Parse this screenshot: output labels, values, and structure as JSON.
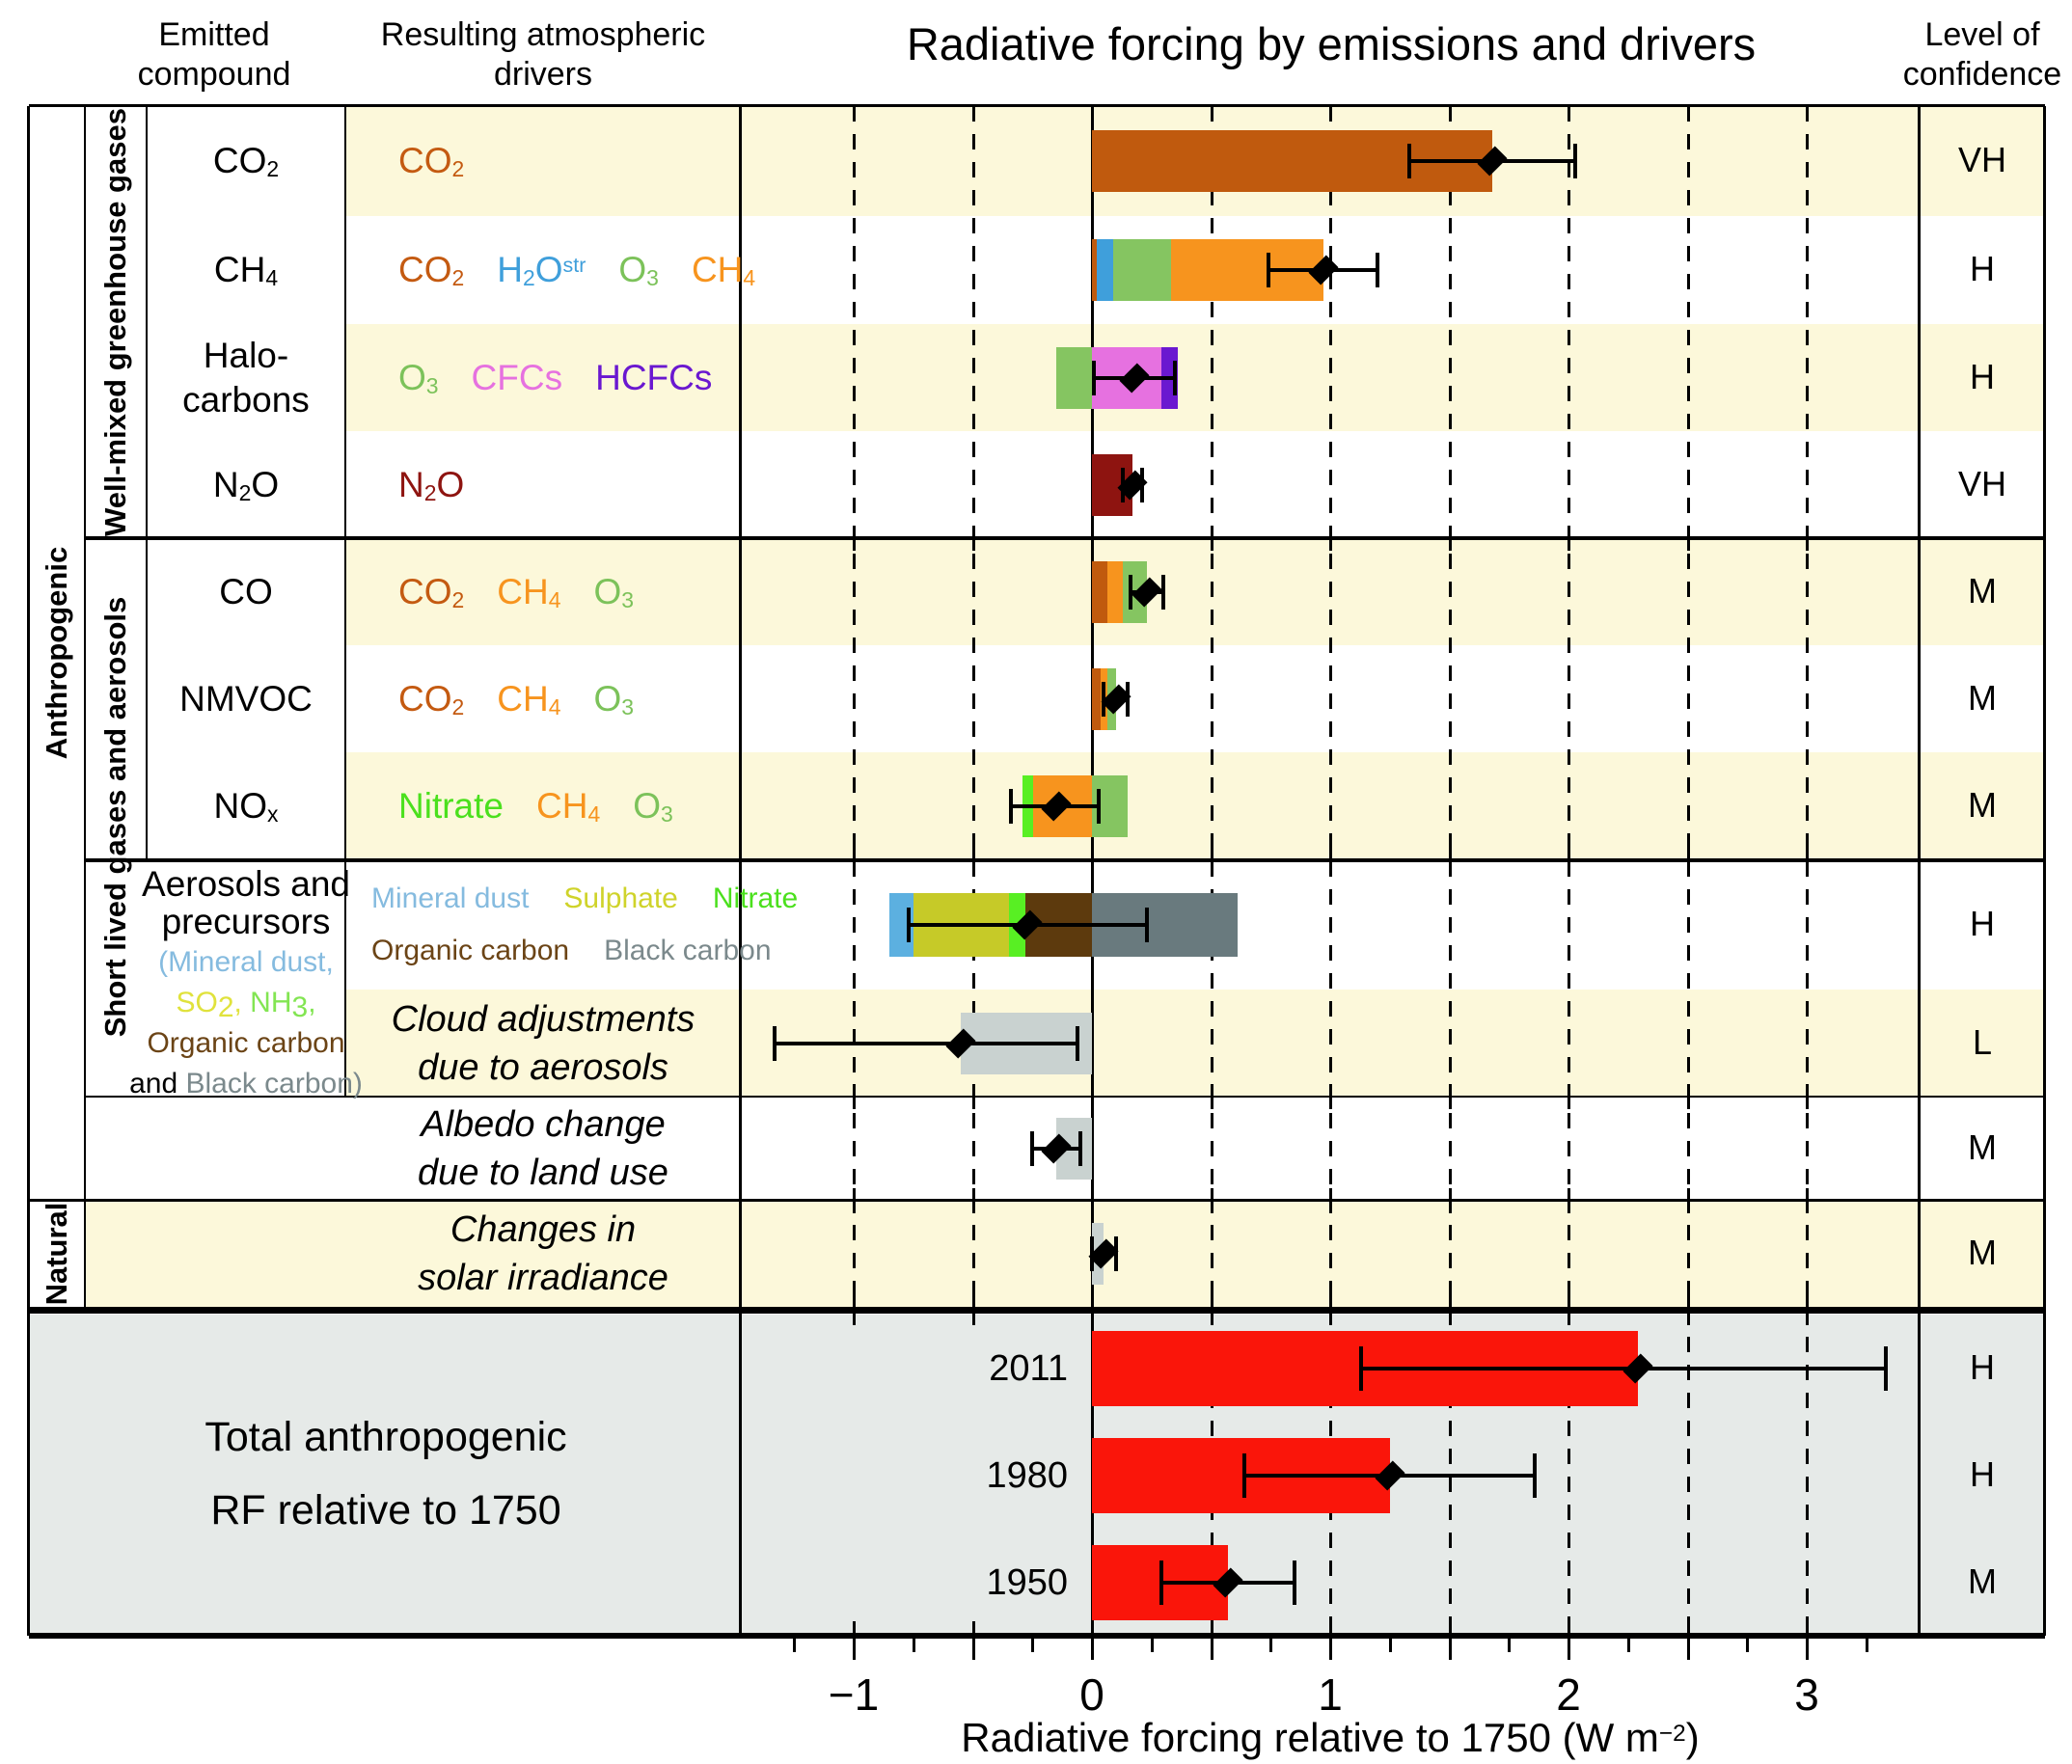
{
  "header": {
    "title": "Radiative forcing by emissions and drivers",
    "emitted_compound": [
      "Emitted",
      "compound"
    ],
    "drivers": [
      "Resulting atmospheric",
      "drivers"
    ],
    "confidence": [
      "Level of",
      "confidence"
    ]
  },
  "groups": {
    "anthropogenic": "Anthropogenic",
    "natural": "Natural",
    "well_mixed": "Well-mixed greenhouse gases",
    "short_lived": "Short lived gases and aerosols"
  },
  "palette": {
    "band_yellow": "#fcf8da",
    "total_bg": "#e6eae8",
    "value_red": "#fb0f00",
    "value_blue": "#2c52d9",
    "bar": {
      "co2": "#c05a0e",
      "ch4": "#f7941e",
      "h2o": "#3f9fdb",
      "o3": "#85c561",
      "cfc": "#e671e0",
      "hcfc": "#6a18d0",
      "n2o": "#8e1410",
      "nitrate": "#58ef23",
      "mdust": "#5cb0e0",
      "sulph": "#c6ca28",
      "oc": "#5d3a0d",
      "bc": "#697a7e",
      "lgrey": "#c9d2d0",
      "red": "#fa150a"
    },
    "text": {
      "black": "#000000",
      "co2": "#c45a11",
      "h2o": "#3f9fdb",
      "o3": "#7cc25a",
      "ch4": "#f7941e",
      "cfc": "#e671e0",
      "hcfc": "#6a18d0",
      "n2o": "#8e1410",
      "nitrate": "#4be01d",
      "mdust": "#85bbdf",
      "sulph": "#cfd32a",
      "oc": "#6b4416",
      "bc": "#7b898c",
      "so2": "#e0e23c",
      "nh3": "#83e553"
    }
  },
  "rows": [
    {
      "id": "co2",
      "band": true,
      "compound": [
        [
          {
            "t": "CO"
          },
          {
            "t": "2",
            "p": "sub"
          }
        ]
      ],
      "drivers": [
        [
          {
            "c": "co2",
            "tk": [
              {
                "t": "CO"
              },
              {
                "t": "2",
                "p": "sub"
              }
            ]
          }
        ]
      ],
      "value": "1.68 [1.33 to 2.03]",
      "vc": "red",
      "conf": "VH",
      "segments": [
        {
          "c": "co2",
          "v0": 0,
          "v1": 1.68
        }
      ],
      "best": 1.68,
      "lo": 1.33,
      "hi": 2.03
    },
    {
      "id": "ch4",
      "band": false,
      "compound": [
        [
          {
            "t": "CH"
          },
          {
            "t": "4",
            "p": "sub"
          }
        ]
      ],
      "drivers": [
        [
          {
            "c": "co2",
            "tk": [
              {
                "t": "CO"
              },
              {
                "t": "2",
                "p": "sub"
              }
            ]
          },
          {
            "c": "h2o",
            "tk": [
              {
                "t": "H"
              },
              {
                "t": "2",
                "p": "sub"
              },
              {
                "t": "O"
              },
              {
                "t": "str",
                "p": "sup"
              }
            ]
          },
          {
            "c": "o3",
            "tk": [
              {
                "t": "O"
              },
              {
                "t": "3",
                "p": "sub"
              }
            ]
          },
          {
            "c": "ch4",
            "tk": [
              {
                "t": "CH"
              },
              {
                "t": "4",
                "p": "sub"
              }
            ]
          }
        ]
      ],
      "value": "0.97 [0.74 to 1.20]",
      "vc": "red",
      "conf": "H",
      "segments": [
        {
          "c": "co2",
          "v0": 0,
          "v1": 0.02
        },
        {
          "c": "h2o",
          "v0": 0.02,
          "v1": 0.09
        },
        {
          "c": "o3",
          "v0": 0.09,
          "v1": 0.33
        },
        {
          "c": "ch4",
          "v0": 0.33,
          "v1": 0.97
        }
      ],
      "best": 0.97,
      "lo": 0.74,
      "hi": 1.2
    },
    {
      "id": "halocarbons",
      "band": true,
      "compound": [
        [
          {
            "t": "Halo-"
          }
        ],
        [
          {
            "t": "carbons"
          }
        ]
      ],
      "drivers": [
        [
          {
            "c": "o3",
            "tk": [
              {
                "t": "O"
              },
              {
                "t": "3",
                "p": "sub"
              }
            ]
          },
          {
            "c": "cfc",
            "tk": [
              {
                "t": "CFCs"
              }
            ]
          },
          {
            "c": "hcfc",
            "tk": [
              {
                "t": "HCFCs"
              }
            ]
          }
        ]
      ],
      "value": "0.18 [0.01 to 0.35]",
      "vc": "red",
      "conf": "H",
      "segments": [
        {
          "c": "o3",
          "v0": -0.15,
          "v1": 0
        },
        {
          "c": "cfc",
          "v0": 0,
          "v1": 0.29
        },
        {
          "c": "hcfc",
          "v0": 0.29,
          "v1": 0.36
        }
      ],
      "best": 0.18,
      "lo": 0.01,
      "hi": 0.35
    },
    {
      "id": "n2o",
      "band": false,
      "compound": [
        [
          {
            "t": "N"
          },
          {
            "t": "2",
            "p": "sub"
          },
          {
            "t": "O"
          }
        ]
      ],
      "drivers": [
        [
          {
            "c": "n2o",
            "tk": [
              {
                "t": "N"
              },
              {
                "t": "2",
                "p": "sub"
              },
              {
                "t": "O"
              }
            ]
          }
        ]
      ],
      "value": "0.17 [0.13 to 0.21]",
      "vc": "red",
      "conf": "VH",
      "segments": [
        {
          "c": "n2o",
          "v0": 0,
          "v1": 0.17
        }
      ],
      "best": 0.17,
      "lo": 0.13,
      "hi": 0.21
    },
    {
      "id": "co",
      "band": true,
      "compound": [
        [
          {
            "t": "CO"
          }
        ]
      ],
      "drivers": [
        [
          {
            "c": "co2",
            "tk": [
              {
                "t": "CO"
              },
              {
                "t": "2",
                "p": "sub"
              }
            ]
          },
          {
            "c": "ch4",
            "tk": [
              {
                "t": "CH"
              },
              {
                "t": "4",
                "p": "sub"
              }
            ]
          },
          {
            "c": "o3",
            "tk": [
              {
                "t": "O"
              },
              {
                "t": "3",
                "p": "sub"
              }
            ]
          }
        ]
      ],
      "value": "0.23 [0.16 to 0.30]",
      "vc": "red",
      "conf": "M",
      "segments": [
        {
          "c": "co2",
          "v0": 0,
          "v1": 0.065
        },
        {
          "c": "ch4",
          "v0": 0.065,
          "v1": 0.13
        },
        {
          "c": "o3",
          "v0": 0.13,
          "v1": 0.23
        }
      ],
      "best": 0.23,
      "lo": 0.16,
      "hi": 0.3
    },
    {
      "id": "nmvoc",
      "band": false,
      "compound": [
        [
          {
            "t": "NMVOC"
          }
        ]
      ],
      "drivers": [
        [
          {
            "c": "co2",
            "tk": [
              {
                "t": "CO"
              },
              {
                "t": "2",
                "p": "sub"
              }
            ]
          },
          {
            "c": "ch4",
            "tk": [
              {
                "t": "CH"
              },
              {
                "t": "4",
                "p": "sub"
              }
            ]
          },
          {
            "c": "o3",
            "tk": [
              {
                "t": "O"
              },
              {
                "t": "3",
                "p": "sub"
              }
            ]
          }
        ]
      ],
      "value": "0.10 [0.05 to 0.15]",
      "vc": "red",
      "conf": "M",
      "segments": [
        {
          "c": "co2",
          "v0": 0,
          "v1": 0.035
        },
        {
          "c": "ch4",
          "v0": 0.035,
          "v1": 0.065
        },
        {
          "c": "o3",
          "v0": 0.065,
          "v1": 0.1
        }
      ],
      "best": 0.1,
      "lo": 0.05,
      "hi": 0.15
    },
    {
      "id": "nox",
      "band": true,
      "compound": [
        [
          {
            "t": "NO"
          },
          {
            "t": "x",
            "p": "sub"
          }
        ]
      ],
      "drivers": [
        [
          {
            "c": "nitrate",
            "tk": [
              {
                "t": "Nitrate"
              }
            ]
          },
          {
            "c": "ch4",
            "tk": [
              {
                "t": "CH"
              },
              {
                "t": "4",
                "p": "sub"
              }
            ]
          },
          {
            "c": "o3",
            "tk": [
              {
                "t": "O"
              },
              {
                "t": "3",
                "p": "sub"
              }
            ]
          }
        ]
      ],
      "value": "-0.15 [-0.34 to 0.03]",
      "vc": "blue",
      "conf": "M",
      "segments": [
        {
          "c": "nitrate",
          "v0": -0.29,
          "v1": -0.245
        },
        {
          "c": "ch4",
          "v0": -0.245,
          "v1": 0
        },
        {
          "c": "o3",
          "v0": 0,
          "v1": 0.15
        }
      ],
      "best": -0.15,
      "lo": -0.34,
      "hi": 0.03
    },
    {
      "id": "aerosols",
      "band": false,
      "compound": [
        [
          {
            "t": "Aerosols and"
          }
        ],
        [
          {
            "t": "precursors"
          }
        ],
        [
          {
            "t": "(Mineral dust,",
            "c": "mdust",
            "small": true
          }
        ],
        [
          {
            "t": "SO",
            "c": "so2",
            "small": true
          },
          {
            "t": "2",
            "p": "sub",
            "c": "so2",
            "small": true
          },
          {
            "t": ", ",
            "c": "so2",
            "small": true
          },
          {
            "t": "NH",
            "c": "nh3",
            "small": true
          },
          {
            "t": "3",
            "p": "sub",
            "c": "nh3",
            "small": true
          },
          {
            "t": ",",
            "c": "nh3",
            "small": true
          }
        ],
        [
          {
            "t": "Organic carbon",
            "c": "oc",
            "small": true
          }
        ],
        [
          {
            "t": "and ",
            "small": true
          },
          {
            "t": "Black carbon)",
            "c": "bc",
            "small": true
          }
        ]
      ],
      "drivers": [
        [
          {
            "c": "mdust",
            "tk": [
              {
                "t": "Mineral dust"
              }
            ],
            "small": true
          },
          {
            "c": "sulph",
            "tk": [
              {
                "t": "Sulphate"
              }
            ],
            "small": true
          },
          {
            "c": "nitrate",
            "tk": [
              {
                "t": "Nitrate"
              }
            ],
            "small": true
          }
        ],
        [
          {
            "c": "oc",
            "tk": [
              {
                "t": "Organic carbon"
              }
            ],
            "small": true
          },
          {
            "c": "bc",
            "tk": [
              {
                "t": "Black carbon"
              }
            ],
            "small": true
          }
        ]
      ],
      "value": "-0.27 [-0.77 to 0.23]",
      "vc": "blue",
      "conf": "H",
      "segments": [
        {
          "c": "mdust",
          "v0": -0.85,
          "v1": -0.75
        },
        {
          "c": "sulph",
          "v0": -0.75,
          "v1": -0.35
        },
        {
          "c": "nitrate",
          "v0": -0.35,
          "v1": -0.28
        },
        {
          "c": "oc",
          "v0": -0.28,
          "v1": 0
        },
        {
          "c": "bc",
          "v0": 0,
          "v1": 0.61
        }
      ],
      "best": -0.27,
      "lo": -0.77,
      "hi": 0.23
    },
    {
      "id": "cloud",
      "band": true,
      "drivers_italic": [
        "Cloud adjustments",
        "due to aerosols"
      ],
      "value": "-0.55 [-1.33 to -0.06]",
      "vc": "blue",
      "conf": "L",
      "segments": [
        {
          "c": "lgrey",
          "v0": -0.55,
          "v1": 0
        }
      ],
      "best": -0.55,
      "lo": -1.33,
      "hi": -0.06
    },
    {
      "id": "albedo",
      "band": false,
      "drivers_italic": [
        "Albedo change",
        "due to land use"
      ],
      "value": "-0.15 [-0.25 to -0.05]",
      "vc": "blue",
      "conf": "M",
      "segments": [
        {
          "c": "lgrey",
          "v0": -0.15,
          "v1": 0
        }
      ],
      "best": -0.15,
      "lo": -0.25,
      "hi": -0.05
    },
    {
      "id": "solar",
      "band": true,
      "drivers_italic": [
        "Changes in",
        "solar irradiance"
      ],
      "value": "0.05 [0.00 to 0.10]",
      "vc": "red",
      "conf": "M",
      "segments": [
        {
          "c": "lgrey",
          "v0": 0,
          "v1": 0.05
        }
      ],
      "best": 0.05,
      "lo": 0.0,
      "hi": 0.1
    }
  ],
  "totals": {
    "label": [
      "Total anthropogenic",
      "RF relative to 1750"
    ],
    "rows": [
      {
        "year": "2011",
        "value": "2.29 [1.13 to 3.33]",
        "conf": "H",
        "best": 2.29,
        "lo": 1.13,
        "hi": 3.33
      },
      {
        "year": "1980",
        "value": "1.25 [0.64 to 1.86]",
        "conf": "H",
        "best": 1.25,
        "lo": 0.64,
        "hi": 1.86
      },
      {
        "year": "1950",
        "value": "0.57 [0.29 to 0.85]",
        "conf": "M",
        "best": 0.57,
        "lo": 0.29,
        "hi": 0.85
      }
    ]
  },
  "axis": {
    "tick_values": [
      -1,
      0,
      1,
      2,
      3
    ],
    "tick_labels": [
      "−1",
      "0",
      "1",
      "2",
      "3"
    ],
    "xlabel": [
      {
        "t": "Radiative forcing relative to 1750 (W m"
      },
      {
        "t": "−2",
        "p": "sup"
      },
      {
        "t": ")"
      }
    ]
  },
  "chart_data": {
    "type": "bar",
    "orientation": "horizontal",
    "title": "Radiative forcing by emissions and drivers",
    "xlabel": "Radiative forcing relative to 1750 (W m-2)",
    "xlim": [
      -1.45,
      3.47
    ],
    "gridlines_every": 0.5,
    "rows": [
      {
        "label": "CO2",
        "net": 1.68,
        "range": [
          1.33,
          2.03
        ],
        "confidence": "VH",
        "segments": {
          "CO2": [
            0,
            1.68
          ]
        }
      },
      {
        "label": "CH4",
        "net": 0.97,
        "range": [
          0.74,
          1.2
        ],
        "confidence": "H",
        "segments": {
          "CO2": [
            0,
            0.02
          ],
          "H2O_str": [
            0.02,
            0.09
          ],
          "O3": [
            0.09,
            0.33
          ],
          "CH4": [
            0.33,
            0.97
          ]
        }
      },
      {
        "label": "Halocarbons",
        "net": 0.18,
        "range": [
          0.01,
          0.35
        ],
        "confidence": "H",
        "segments": {
          "O3": [
            -0.15,
            0
          ],
          "CFCs": [
            0,
            0.29
          ],
          "HCFCs": [
            0.29,
            0.36
          ]
        }
      },
      {
        "label": "N2O",
        "net": 0.17,
        "range": [
          0.13,
          0.21
        ],
        "confidence": "VH",
        "segments": {
          "N2O": [
            0,
            0.17
          ]
        }
      },
      {
        "label": "CO",
        "net": 0.23,
        "range": [
          0.16,
          0.3
        ],
        "confidence": "M",
        "segments": {
          "CO2": [
            0,
            0.065
          ],
          "CH4": [
            0.065,
            0.13
          ],
          "O3": [
            0.13,
            0.23
          ]
        }
      },
      {
        "label": "NMVOC",
        "net": 0.1,
        "range": [
          0.05,
          0.15
        ],
        "confidence": "M",
        "segments": {
          "CO2": [
            0,
            0.035
          ],
          "CH4": [
            0.035,
            0.065
          ],
          "O3": [
            0.065,
            0.1
          ]
        }
      },
      {
        "label": "NOx",
        "net": -0.15,
        "range": [
          -0.34,
          0.03
        ],
        "confidence": "M",
        "segments": {
          "Nitrate": [
            -0.29,
            -0.245
          ],
          "CH4": [
            -0.245,
            0
          ],
          "O3": [
            0,
            0.15
          ]
        }
      },
      {
        "label": "Aerosols and precursors",
        "net": -0.27,
        "range": [
          -0.77,
          0.23
        ],
        "confidence": "H",
        "segments": {
          "Mineral dust": [
            -0.85,
            -0.75
          ],
          "Sulphate": [
            -0.75,
            -0.35
          ],
          "Nitrate": [
            -0.35,
            -0.28
          ],
          "Organic carbon": [
            -0.28,
            0
          ],
          "Black carbon": [
            0,
            0.61
          ]
        }
      },
      {
        "label": "Cloud adjustments due to aerosols",
        "net": -0.55,
        "range": [
          -1.33,
          -0.06
        ],
        "confidence": "L",
        "segments": {
          "total": [
            -0.55,
            0
          ]
        }
      },
      {
        "label": "Albedo change due to land use",
        "net": -0.15,
        "range": [
          -0.25,
          -0.05
        ],
        "confidence": "M",
        "segments": {
          "total": [
            -0.15,
            0
          ]
        }
      },
      {
        "label": "Changes in solar irradiance",
        "net": 0.05,
        "range": [
          0.0,
          0.1
        ],
        "confidence": "M",
        "segments": {
          "total": [
            0,
            0.05
          ]
        }
      },
      {
        "label": "Total anthropogenic RF relative to 1750 - 2011",
        "net": 2.29,
        "range": [
          1.13,
          3.33
        ],
        "confidence": "H",
        "segments": {
          "total": [
            0,
            2.29
          ]
        }
      },
      {
        "label": "Total anthropogenic RF relative to 1750 - 1980",
        "net": 1.25,
        "range": [
          0.64,
          1.86
        ],
        "confidence": "H",
        "segments": {
          "total": [
            0,
            1.25
          ]
        }
      },
      {
        "label": "Total anthropogenic RF relative to 1750 - 1950",
        "net": 0.57,
        "range": [
          0.29,
          0.85
        ],
        "confidence": "M",
        "segments": {
          "total": [
            0,
            0.57
          ]
        }
      }
    ]
  }
}
